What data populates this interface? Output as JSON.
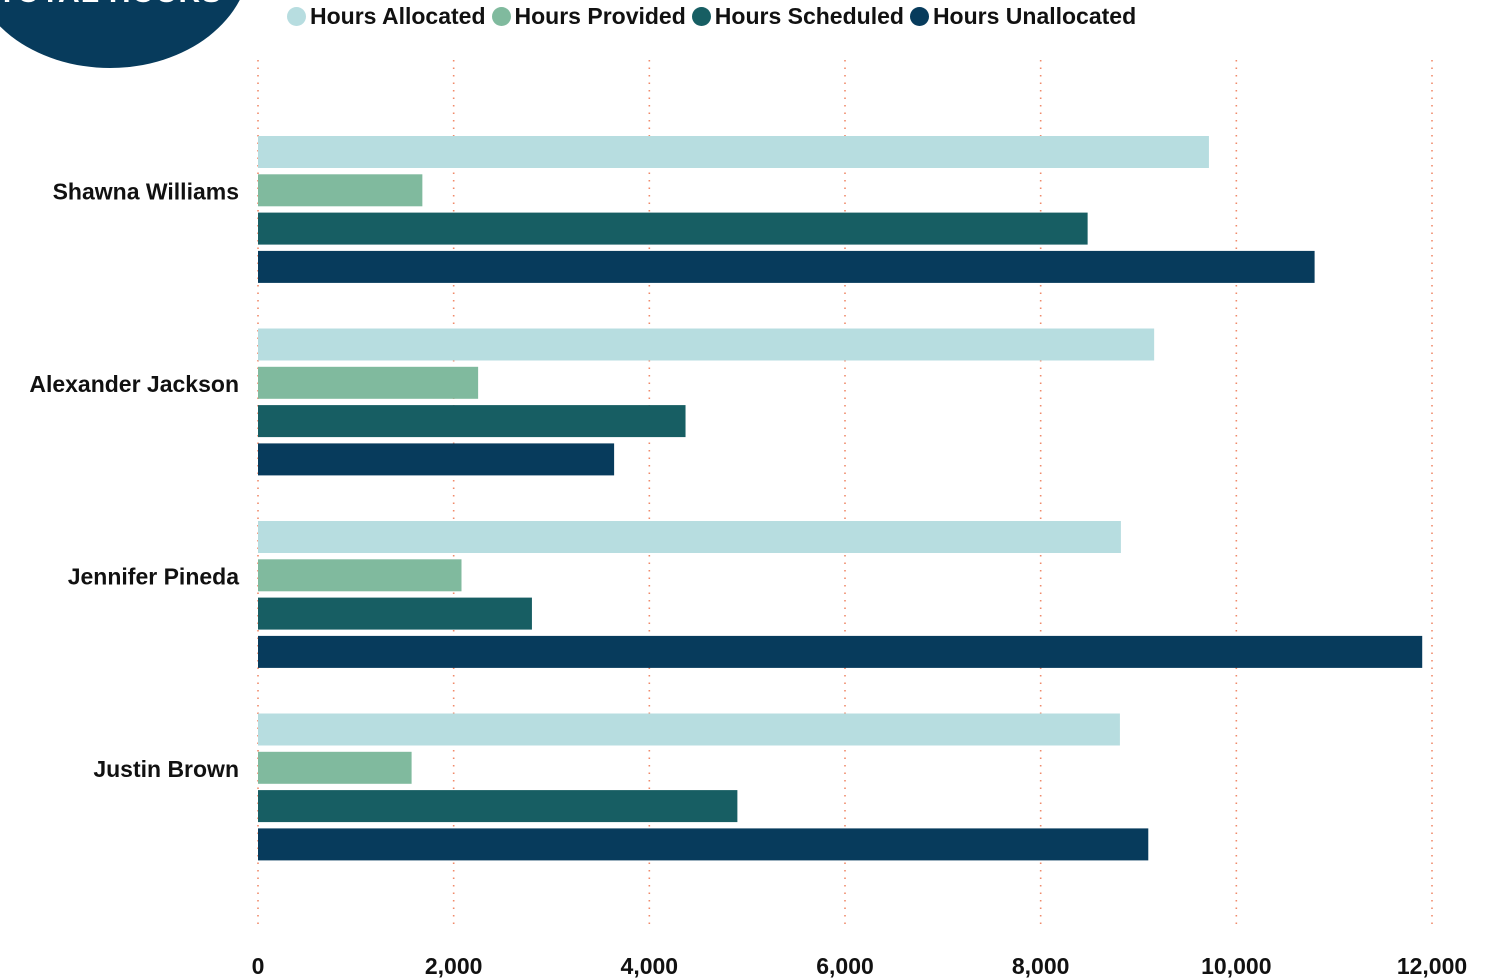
{
  "badge": {
    "label": "TOTAL HOURS"
  },
  "colors": {
    "hours_allocated": "#b7dde0",
    "hours_provided": "#80ba9e",
    "hours_scheduled": "#175e63",
    "hours_unallocated": "#073b5c",
    "gridline": "#f08a6a"
  },
  "chart_data": {
    "type": "bar",
    "orientation": "horizontal",
    "title": "",
    "xlabel": "",
    "ylabel": "",
    "categories": [
      "Shawna Williams",
      "Alexander Jackson",
      "Jennifer Pineda",
      "Justin Brown"
    ],
    "series": [
      {
        "name": "Hours Allocated",
        "color": "#b7dde0",
        "values": [
          9720,
          9160,
          8820,
          8810
        ]
      },
      {
        "name": "Hours Provided",
        "color": "#80ba9e",
        "values": [
          1680,
          2250,
          2080,
          1570
        ]
      },
      {
        "name": "Hours Scheduled",
        "color": "#175e63",
        "values": [
          8480,
          4370,
          2800,
          4900
        ]
      },
      {
        "name": "Hours Unallocated",
        "color": "#073b5c",
        "values": [
          10800,
          3640,
          11900,
          9100
        ]
      }
    ],
    "xlim": [
      0,
      12000
    ],
    "xticks": [
      0,
      2000,
      4000,
      6000,
      8000,
      10000,
      12000
    ],
    "xtick_labels": [
      "0",
      "2,000",
      "4,000",
      "6,000",
      "8,000",
      "10,000",
      "12,000"
    ],
    "grid": "vertical dotted",
    "legend_position": "top"
  }
}
